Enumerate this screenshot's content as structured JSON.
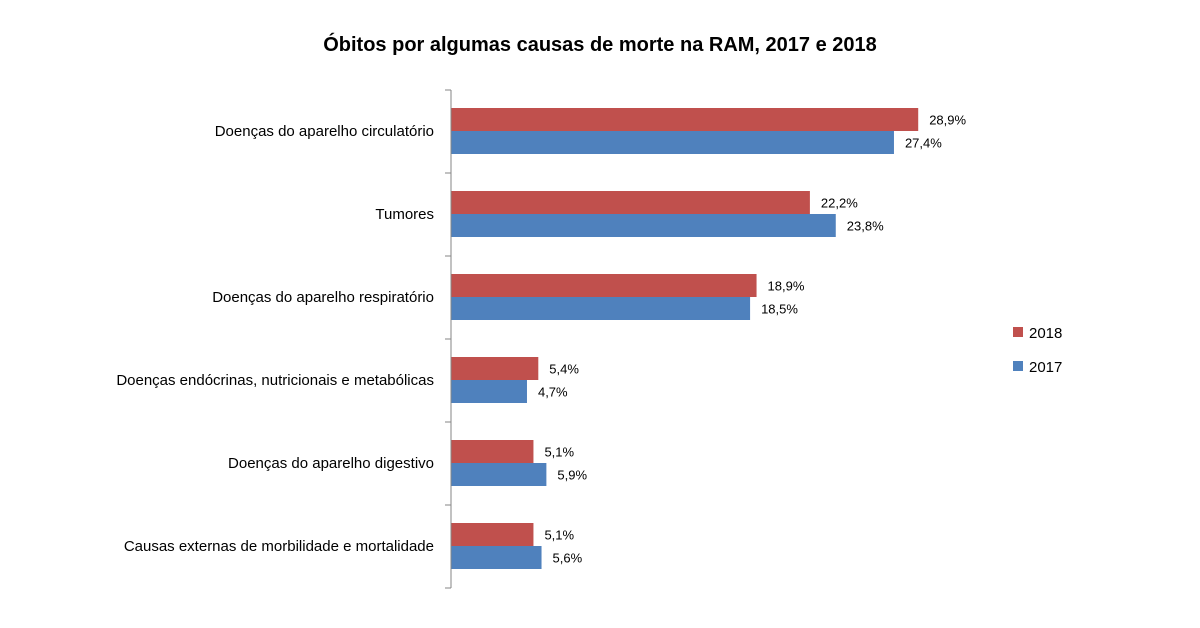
{
  "chart_data": {
    "type": "bar",
    "orientation": "horizontal",
    "title": "Óbitos por algumas causas de morte na RAM, 2017 e 2018",
    "categories": [
      "Doenças do aparelho circulatório",
      "Tumores",
      "Doenças do aparelho respiratório",
      "Doenças endócrinas, nutricionais e metabólicas",
      "Doenças do aparelho digestivo",
      "Causas externas de morbilidade e mortalidade"
    ],
    "series": [
      {
        "name": "2018",
        "color": "#C0504D",
        "values": [
          28.9,
          22.2,
          18.9,
          5.4,
          5.1,
          5.1
        ],
        "labels": [
          "28,9%",
          "22,2%",
          "18,9%",
          "5,4%",
          "5,1%",
          "5,1%"
        ]
      },
      {
        "name": "2017",
        "color": "#4F81BD",
        "values": [
          27.4,
          23.8,
          18.5,
          4.7,
          5.9,
          5.6
        ],
        "labels": [
          "27,4%",
          "23,8%",
          "18,5%",
          "4,7%",
          "5,9%",
          "5,6%"
        ]
      }
    ],
    "xlim": [
      0,
      30
    ],
    "grid": false,
    "legend_position": "right"
  }
}
